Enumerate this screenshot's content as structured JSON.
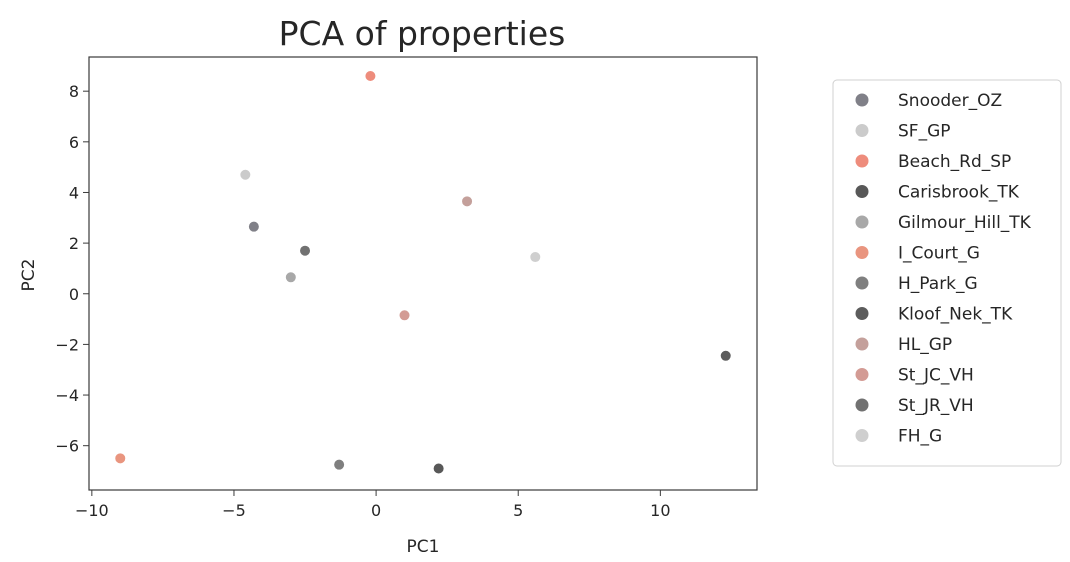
{
  "chart_data": {
    "type": "scatter",
    "title": "PCA of properties",
    "xlabel": "PC1",
    "ylabel": "PC2",
    "xlim": [
      -10.1,
      13.4
    ],
    "ylim": [
      -7.75,
      9.35
    ],
    "xticks": [
      -10,
      -5,
      0,
      5,
      10
    ],
    "yticks": [
      -6,
      -4,
      -2,
      0,
      2,
      4,
      6,
      8
    ],
    "grid": false,
    "legend_position": "outside-right",
    "series": [
      {
        "name": "Snooder_OZ",
        "color": "#808088",
        "x": [
          -4.3
        ],
        "y": [
          2.65
        ]
      },
      {
        "name": "SF_GP",
        "color": "#cbcbcb",
        "x": [
          -4.6
        ],
        "y": [
          4.7
        ]
      },
      {
        "name": "Beach_Rd_SP",
        "color": "#ee8c7c",
        "x": [
          -0.2
        ],
        "y": [
          8.6
        ]
      },
      {
        "name": "Carisbrook_TK",
        "color": "#585858",
        "x": [
          2.2
        ],
        "y": [
          -6.9
        ]
      },
      {
        "name": "Gilmour_Hill_TK",
        "color": "#a8a8a8",
        "x": [
          -3.0
        ],
        "y": [
          0.65
        ]
      },
      {
        "name": "I_Court_G",
        "color": "#e9957f",
        "x": [
          -9.0
        ],
        "y": [
          -6.5
        ]
      },
      {
        "name": "H_Park_G",
        "color": "#7f7f7f",
        "x": [
          -1.3
        ],
        "y": [
          -6.75
        ]
      },
      {
        "name": "Kloof_Nek_TK",
        "color": "#5c5c5c",
        "x": [
          12.3
        ],
        "y": [
          -2.45
        ]
      },
      {
        "name": "HL_GP",
        "color": "#c4a09b",
        "x": [
          3.2
        ],
        "y": [
          3.65
        ]
      },
      {
        "name": "St_JC_VH",
        "color": "#d39b94",
        "x": [
          1.0
        ],
        "y": [
          -0.85
        ]
      },
      {
        "name": "St_JR_VH",
        "color": "#717171",
        "x": [
          -2.5
        ],
        "y": [
          1.7
        ]
      },
      {
        "name": "FH_G",
        "color": "#cfcfcf",
        "x": [
          5.6
        ],
        "y": [
          1.45
        ]
      }
    ]
  }
}
